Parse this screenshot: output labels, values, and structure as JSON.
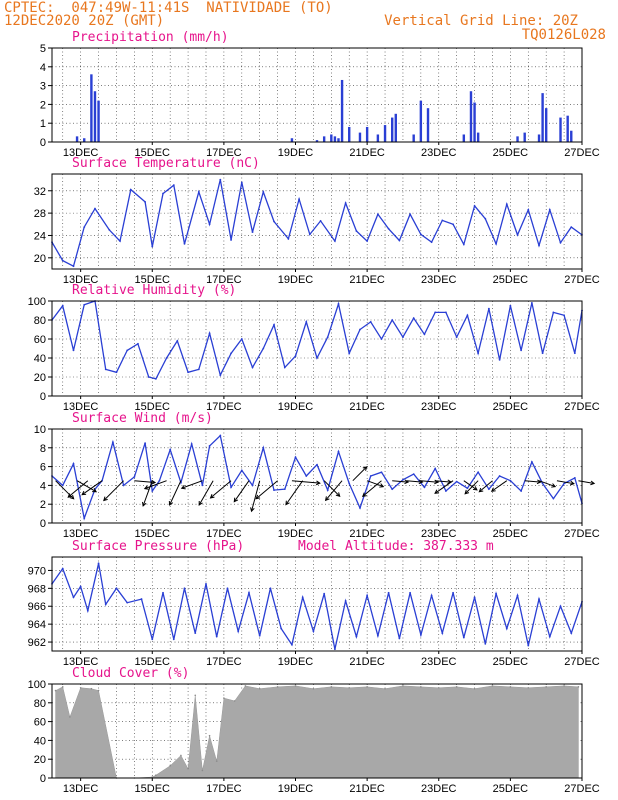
{
  "header": {
    "station": "CPTEC:  047:49W-11:41S  NATIVIDADE (TO)",
    "datetime": "12DEC2020 20Z (GMT)",
    "grid_note": "Vertical Grid Line: 20Z",
    "run_id": "TQ0126L028"
  },
  "colors": {
    "header": "#e8771f",
    "titles": "#e6148c",
    "series": "#2a3fd4",
    "cloud": "#a8a8a8",
    "grid": "#000000"
  },
  "x_ticks": [
    "13DEC",
    "15DEC",
    "17DEC",
    "19DEC",
    "21DEC",
    "23DEC",
    "25DEC",
    "27DEC"
  ],
  "panels": [
    {
      "key": "precip",
      "title": "Precipitation (mm/h)",
      "extra": "",
      "yticks": [
        "0",
        "1",
        "2",
        "3",
        "4",
        "5"
      ],
      "xticks": true
    },
    {
      "key": "temp",
      "title": "Surface Temperature (nC)",
      "extra": "",
      "yticks": [
        "20",
        "24",
        "28",
        "32"
      ],
      "xticks": true
    },
    {
      "key": "rh",
      "title": "Relative Humidity (%)",
      "extra": "",
      "yticks": [
        "0",
        "20",
        "40",
        "60",
        "80",
        "100"
      ],
      "xticks": true
    },
    {
      "key": "wind",
      "title": "Surface Wind (m/s)",
      "extra": "",
      "yticks": [
        "0",
        "2",
        "4",
        "6",
        "8",
        "10"
      ],
      "xticks": true
    },
    {
      "key": "pres",
      "title": "Surface Pressure (hPa)",
      "extra": "Model Altitude: 387.333 m",
      "yticks": [
        "962",
        "964",
        "966",
        "968",
        "970"
      ],
      "xticks": true
    },
    {
      "key": "cloud",
      "title": "Cloud Cover (%)",
      "extra": "",
      "yticks": [
        "0",
        "20",
        "40",
        "60",
        "80",
        "100"
      ],
      "xticks": true
    }
  ],
  "chart_data": [
    {
      "type": "bar",
      "title": "Precipitation (mm/h)",
      "ylim": [
        0,
        5
      ],
      "x": [
        12.9,
        13.1,
        13.3,
        13.4,
        13.5,
        18.9,
        19.6,
        19.8,
        20.0,
        20.1,
        20.2,
        20.3,
        20.5,
        20.8,
        21.0,
        21.3,
        21.5,
        21.7,
        21.8,
        22.3,
        22.5,
        22.7,
        23.7,
        23.9,
        24.0,
        24.1,
        25.2,
        25.4,
        25.8,
        25.9,
        26.0,
        26.4,
        26.6,
        26.7
      ],
      "values": [
        0.3,
        0.2,
        3.6,
        2.7,
        2.2,
        0.2,
        0.1,
        0.3,
        0.4,
        0.3,
        0.2,
        3.3,
        0.8,
        0.5,
        0.8,
        0.4,
        0.9,
        1.3,
        1.5,
        0.4,
        2.2,
        1.8,
        0.4,
        2.7,
        2.1,
        0.5,
        0.3,
        0.5,
        0.4,
        2.6,
        1.8,
        1.3,
        1.4,
        0.6
      ]
    },
    {
      "type": "line",
      "title": "Surface Temperature (nC)",
      "ylim": [
        18,
        35
      ],
      "x": [
        12.2,
        12.5,
        12.8,
        13.1,
        13.4,
        13.8,
        14.1,
        14.4,
        14.8,
        15.0,
        15.3,
        15.6,
        15.9,
        16.3,
        16.6,
        16.9,
        17.2,
        17.5,
        17.8,
        18.1,
        18.4,
        18.8,
        19.1,
        19.4,
        19.7,
        20.1,
        20.4,
        20.7,
        21.0,
        21.3,
        21.6,
        21.9,
        22.2,
        22.5,
        22.8,
        23.1,
        23.4,
        23.7,
        24.0,
        24.3,
        24.6,
        24.9,
        25.2,
        25.5,
        25.8,
        26.1,
        26.4,
        26.7,
        27.0
      ],
      "values": [
        22.8,
        19.5,
        18.5,
        25.5,
        28.8,
        25.0,
        23.0,
        32.2,
        30.0,
        22.0,
        31.5,
        33.0,
        22.5,
        31.8,
        26.0,
        34.0,
        23.2,
        33.5,
        24.6,
        31.8,
        26.5,
        23.4,
        30.5,
        24.2,
        26.6,
        23.0,
        29.8,
        24.8,
        23.0,
        27.8,
        25.2,
        23.1,
        27.8,
        24.2,
        22.8,
        26.7,
        26.0,
        22.4,
        29.3,
        27.0,
        22.5,
        29.6,
        24.1,
        28.6,
        22.2,
        28.6,
        22.7,
        25.5,
        24.1
      ]
    },
    {
      "type": "line",
      "title": "Relative Humidity (%)",
      "ylim": [
        0,
        100
      ],
      "x": [
        12.2,
        12.5,
        12.8,
        13.1,
        13.4,
        13.7,
        14.0,
        14.3,
        14.6,
        14.9,
        15.1,
        15.4,
        15.7,
        16.0,
        16.3,
        16.6,
        16.9,
        17.2,
        17.5,
        17.8,
        18.1,
        18.4,
        18.7,
        19.0,
        19.3,
        19.6,
        19.9,
        20.2,
        20.5,
        20.8,
        21.1,
        21.4,
        21.7,
        22.0,
        22.3,
        22.6,
        22.9,
        23.2,
        23.5,
        23.8,
        24.1,
        24.4,
        24.7,
        25.0,
        25.3,
        25.6,
        25.9,
        26.2,
        26.5,
        26.8,
        27.0
      ],
      "values": [
        80,
        95,
        48,
        96,
        100,
        28,
        25,
        48,
        55,
        20,
        18,
        40,
        58,
        25,
        28,
        66,
        22,
        45,
        60,
        30,
        50,
        75,
        30,
        42,
        78,
        40,
        62,
        97,
        45,
        70,
        78,
        60,
        80,
        62,
        82,
        65,
        88,
        88,
        62,
        85,
        45,
        92,
        38,
        95,
        48,
        98,
        45,
        88,
        85,
        45,
        90
      ]
    },
    {
      "type": "line",
      "title": "Surface Wind (m/s)",
      "ylim": [
        0,
        10
      ],
      "x": [
        12.2,
        12.5,
        12.8,
        13.1,
        13.4,
        13.6,
        13.9,
        14.2,
        14.5,
        14.8,
        15.0,
        15.2,
        15.5,
        15.8,
        16.1,
        16.4,
        16.6,
        16.9,
        17.2,
        17.5,
        17.8,
        18.1,
        18.4,
        18.7,
        19.0,
        19.3,
        19.6,
        19.9,
        20.2,
        20.5,
        20.8,
        21.1,
        21.4,
        21.7,
        22.0,
        22.3,
        22.6,
        22.9,
        23.2,
        23.5,
        23.8,
        24.1,
        24.4,
        24.7,
        25.0,
        25.3,
        25.6,
        25.9,
        26.2,
        26.5,
        26.8,
        27.0
      ],
      "values": [
        5.0,
        4.0,
        6.3,
        0.5,
        3.6,
        4.5,
        8.6,
        4.0,
        4.9,
        8.5,
        3.4,
        4.5,
        7.8,
        4.3,
        8.4,
        4.0,
        8.2,
        9.3,
        3.8,
        5.6,
        4.0,
        8.0,
        3.5,
        3.6,
        7.0,
        5.0,
        6.2,
        3.5,
        7.6,
        4.2,
        1.6,
        5.0,
        5.4,
        3.6,
        4.6,
        5.2,
        3.8,
        5.8,
        3.4,
        4.4,
        3.7,
        5.4,
        3.6,
        5.0,
        4.5,
        3.4,
        6.5,
        4.2,
        2.6,
        4.2,
        4.8,
        2.1
      ]
    },
    {
      "type": "line",
      "title": "Surface Pressure (hPa)",
      "ylim": [
        961,
        971.5
      ],
      "x": [
        12.2,
        12.5,
        12.8,
        13.0,
        13.2,
        13.5,
        13.7,
        14.0,
        14.3,
        14.7,
        15.0,
        15.3,
        15.6,
        15.9,
        16.2,
        16.5,
        16.8,
        17.1,
        17.4,
        17.7,
        18.0,
        18.3,
        18.6,
        18.9,
        19.2,
        19.5,
        19.8,
        20.1,
        20.4,
        20.7,
        21.0,
        21.3,
        21.6,
        21.9,
        22.2,
        22.5,
        22.8,
        23.1,
        23.4,
        23.7,
        24.0,
        24.3,
        24.6,
        24.9,
        25.2,
        25.5,
        25.8,
        26.1,
        26.4,
        26.7,
        27.0
      ],
      "values": [
        968.5,
        970.2,
        967.0,
        968.2,
        965.5,
        970.8,
        966.2,
        968.0,
        966.4,
        966.8,
        962.3,
        967.5,
        962.3,
        968.0,
        963.0,
        968.5,
        962.6,
        968.0,
        963.2,
        967.5,
        962.7,
        968.0,
        963.5,
        961.7,
        967.0,
        963.2,
        967.4,
        961.2,
        966.6,
        962.6,
        967.2,
        962.7,
        967.5,
        962.4,
        967.5,
        962.8,
        967.2,
        963.0,
        967.5,
        962.5,
        967.0,
        961.8,
        967.4,
        963.5,
        967.2,
        961.6,
        966.8,
        962.6,
        966.0,
        963.0,
        966.5
      ]
    },
    {
      "type": "bar",
      "title": "Cloud Cover (%)",
      "ylim": [
        0,
        100
      ],
      "x": [
        12.3,
        12.5,
        12.7,
        13.0,
        13.3,
        13.5,
        14.0,
        14.5,
        15.0,
        15.1,
        15.5,
        15.8,
        16.0,
        16.2,
        16.4,
        16.6,
        16.8,
        17.0,
        17.3,
        17.6,
        18.0,
        18.5,
        19.0,
        19.5,
        20.0,
        20.5,
        21.0,
        21.5,
        22.0,
        22.5,
        23.0,
        23.5,
        24.0,
        24.5,
        25.0,
        25.5,
        26.0,
        26.5,
        26.9
      ],
      "values": [
        93,
        97,
        65,
        96,
        95,
        93,
        0,
        0,
        1,
        3,
        13,
        24,
        10,
        88,
        8,
        45,
        18,
        85,
        82,
        98,
        95,
        97,
        98,
        95,
        97,
        96,
        97,
        95,
        98,
        97,
        96,
        97,
        95,
        98,
        97,
        96,
        97,
        98,
        97
      ]
    }
  ],
  "wind_arrows": [
    {
      "x": 12.3,
      "dir": 135,
      "mag": 1.3
    },
    {
      "x": 12.9,
      "dir": 120,
      "mag": 1.0
    },
    {
      "x": 13.2,
      "dir": 230,
      "mag": 1.3
    },
    {
      "x": 13.6,
      "dir": 235,
      "mag": 1.2
    },
    {
      "x": 14.2,
      "dir": 225,
      "mag": 1.5
    },
    {
      "x": 14.5,
      "dir": 95,
      "mag": 0.9
    },
    {
      "x": 15.0,
      "dir": 200,
      "mag": 1.4
    },
    {
      "x": 15.4,
      "dir": 250,
      "mag": 1.1
    },
    {
      "x": 15.8,
      "dir": 205,
      "mag": 1.4
    },
    {
      "x": 16.4,
      "dir": 250,
      "mag": 1.0
    },
    {
      "x": 16.7,
      "dir": 210,
      "mag": 1.5
    },
    {
      "x": 17.2,
      "dir": 230,
      "mag": 1.4
    },
    {
      "x": 17.7,
      "dir": 215,
      "mag": 1.3
    },
    {
      "x": 18.0,
      "dir": 195,
      "mag": 1.8
    },
    {
      "x": 18.5,
      "dir": 230,
      "mag": 1.5
    },
    {
      "x": 18.9,
      "dir": 95,
      "mag": 1.5
    },
    {
      "x": 19.2,
      "dir": 215,
      "mag": 1.6
    },
    {
      "x": 19.8,
      "dir": 135,
      "mag": 1.0
    },
    {
      "x": 20.3,
      "dir": 220,
      "mag": 1.3
    },
    {
      "x": 20.6,
      "dir": 45,
      "mag": 0.8
    },
    {
      "x": 21.0,
      "dir": 110,
      "mag": 0.6
    },
    {
      "x": 21.4,
      "dir": 230,
      "mag": 1.2
    },
    {
      "x": 21.7,
      "dir": 95,
      "mag": 0.5
    },
    {
      "x": 22.1,
      "dir": 95,
      "mag": 0.5
    },
    {
      "x": 22.5,
      "dir": 95,
      "mag": 0.6
    },
    {
      "x": 22.9,
      "dir": 95,
      "mag": 0.5
    },
    {
      "x": 23.4,
      "dir": 235,
      "mag": 1.0
    },
    {
      "x": 23.7,
      "dir": 125,
      "mag": 0.5
    },
    {
      "x": 24.1,
      "dir": 225,
      "mag": 0.7
    },
    {
      "x": 24.5,
      "dir": 230,
      "mag": 0.6
    },
    {
      "x": 24.9,
      "dir": 235,
      "mag": 0.7
    },
    {
      "x": 25.4,
      "dir": 95,
      "mag": 0.5
    },
    {
      "x": 25.8,
      "dir": 110,
      "mag": 0.6
    },
    {
      "x": 26.3,
      "dir": 100,
      "mag": 0.6
    },
    {
      "x": 26.9,
      "dir": 100,
      "mag": 0.5
    }
  ]
}
